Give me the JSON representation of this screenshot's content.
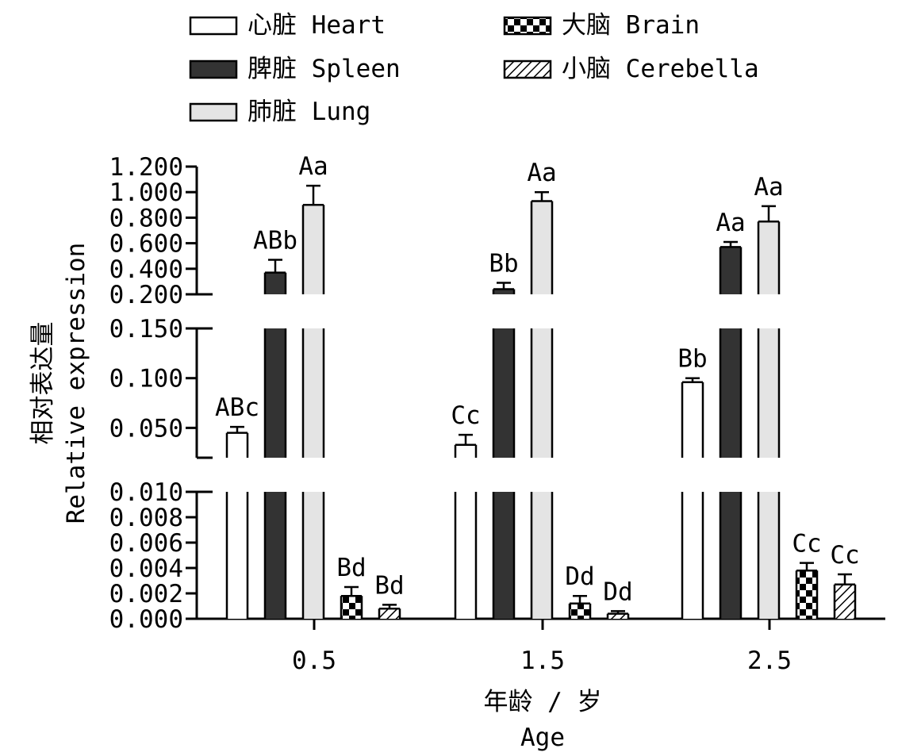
{
  "chart_data": {
    "type": "bar",
    "xlabel_cn": "年龄 / 岁",
    "xlabel_en": "Age",
    "ylabel_cn": "相对表达量",
    "ylabel_en": "Relative expression",
    "categories": [
      "0.5",
      "1.5",
      "2.5"
    ],
    "axis_segments": [
      {
        "ylim": [
          0.0,
          0.01
        ],
        "ticks": [
          "0.000",
          "0.002",
          "0.004",
          "0.006",
          "0.008",
          "0.010"
        ],
        "tick_values": [
          0,
          0.002,
          0.004,
          0.006,
          0.008,
          0.01
        ]
      },
      {
        "ylim": [
          0.02,
          0.15
        ],
        "ticks": [
          "0.050",
          "0.100",
          "0.150"
        ],
        "tick_values": [
          0.05,
          0.1,
          0.15
        ]
      },
      {
        "ylim": [
          0.2,
          1.2
        ],
        "ticks": [
          "0.200",
          "0.400",
          "0.600",
          "0.800",
          "1.000",
          "1.200"
        ],
        "tick_values": [
          0.2,
          0.4,
          0.6,
          0.8,
          1.0,
          1.2
        ]
      }
    ],
    "series": [
      {
        "name": "心脏 Heart",
        "key": "heart",
        "fill": "white",
        "values": [
          0.045,
          0.033,
          0.096
        ],
        "errors": [
          0.006,
          0.01,
          0.004
        ],
        "labels": [
          "ABc",
          "Cc",
          "Bb"
        ]
      },
      {
        "name": "脾脏 Spleen",
        "key": "spleen",
        "fill": "dark",
        "values": [
          0.37,
          0.24,
          0.57
        ],
        "errors": [
          0.1,
          0.05,
          0.04
        ],
        "labels": [
          "ABb",
          "Bb",
          "Aa"
        ]
      },
      {
        "name": "肺脏 Lung",
        "key": "lung",
        "fill": "light",
        "values": [
          0.9,
          0.93,
          0.77
        ],
        "errors": [
          0.15,
          0.07,
          0.12
        ],
        "labels": [
          "Aa",
          "Aa",
          "Aa"
        ]
      },
      {
        "name": "大脑 Brain",
        "key": "brain",
        "fill": "checker",
        "values": [
          0.0018,
          0.0012,
          0.0038
        ],
        "errors": [
          0.0007,
          0.0006,
          0.0006
        ],
        "labels": [
          "Bd",
          "Dd",
          "Cc"
        ]
      },
      {
        "name": "小脑 Cerebella",
        "key": "cerebella",
        "fill": "hatch",
        "values": [
          0.0008,
          0.0004,
          0.0027
        ],
        "errors": [
          0.0003,
          0.0002,
          0.0008
        ],
        "labels": [
          "Bd",
          "Dd",
          "Cc"
        ]
      }
    ],
    "legend_position": "top",
    "grid": false,
    "colors": {
      "dark": "#333333",
      "light": "#e4e4e4",
      "white": "#ffffff"
    }
  }
}
